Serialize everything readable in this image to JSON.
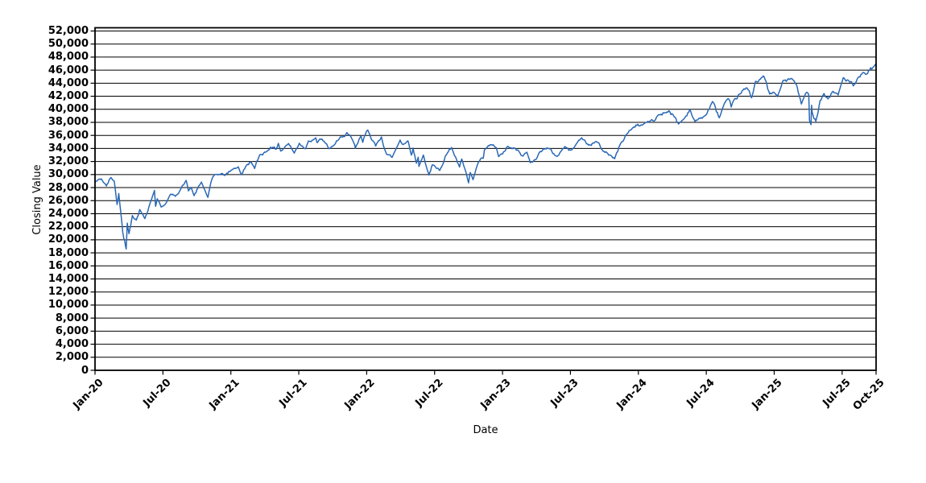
{
  "chart_data": {
    "type": "line",
    "title": "",
    "xlabel": "Date",
    "ylabel": "Closing Value",
    "grid": "horizontal",
    "legend": "none",
    "line_color": "#2a68b5",
    "grid_color": "#000000",
    "axis_color": "#000000",
    "background_color": "#ffffff",
    "xlim_months": [
      0,
      69
    ],
    "ylim": [
      0,
      52000
    ],
    "x_unit": "months since Jan-2020",
    "x_ticks": [
      {
        "m": 0,
        "label": "Jan-20"
      },
      {
        "m": 6,
        "label": "Jul-20"
      },
      {
        "m": 12,
        "label": "Jan-21"
      },
      {
        "m": 18,
        "label": "Jul-21"
      },
      {
        "m": 24,
        "label": "Jan-22"
      },
      {
        "m": 30,
        "label": "Jul-22"
      },
      {
        "m": 36,
        "label": "Jan-23"
      },
      {
        "m": 42,
        "label": "Jul-23"
      },
      {
        "m": 48,
        "label": "Jan-24"
      },
      {
        "m": 54,
        "label": "Jul-24"
      },
      {
        "m": 60,
        "label": "Jan-25"
      },
      {
        "m": 66,
        "label": "Jul-25"
      },
      {
        "m": 69,
        "label": "Oct-25"
      }
    ],
    "y_ticks": [
      {
        "v": 0,
        "label": "0"
      },
      {
        "v": 2000,
        "label": "2,000"
      },
      {
        "v": 4000,
        "label": "4,000"
      },
      {
        "v": 6000,
        "label": "6,000"
      },
      {
        "v": 8000,
        "label": "8,000"
      },
      {
        "v": 10000,
        "label": "10,000"
      },
      {
        "v": 12000,
        "label": "12,000"
      },
      {
        "v": 14000,
        "label": "14,000"
      },
      {
        "v": 16000,
        "label": "16,000"
      },
      {
        "v": 18000,
        "label": "18,000"
      },
      {
        "v": 20000,
        "label": "20,000"
      },
      {
        "v": 22000,
        "label": "22,000"
      },
      {
        "v": 24000,
        "label": "24,000"
      },
      {
        "v": 26000,
        "label": "26,000"
      },
      {
        "v": 28000,
        "label": "28,000"
      },
      {
        "v": 30000,
        "label": "30,000"
      },
      {
        "v": 32000,
        "label": "32,000"
      },
      {
        "v": 34000,
        "label": "34,000"
      },
      {
        "v": 36000,
        "label": "36,000"
      },
      {
        "v": 38000,
        "label": "38,000"
      },
      {
        "v": 40000,
        "label": "40,000"
      },
      {
        "v": 42000,
        "label": "42,000"
      },
      {
        "v": 44000,
        "label": "44,000"
      },
      {
        "v": 46000,
        "label": "46,000"
      },
      {
        "v": 48000,
        "label": "48,000"
      },
      {
        "v": 50000,
        "label": "50,000"
      },
      {
        "v": 52000,
        "label": "52,000"
      }
    ],
    "series": [
      {
        "name": "Closing Value",
        "points": [
          [
            0,
            28869
          ],
          [
            0.55,
            29348
          ],
          [
            1.0,
            28256
          ],
          [
            1.4,
            29551
          ],
          [
            1.7,
            28992
          ],
          [
            1.95,
            25409
          ],
          [
            2.1,
            27090
          ],
          [
            2.3,
            23851
          ],
          [
            2.45,
            21200
          ],
          [
            2.55,
            20188
          ],
          [
            2.62,
            19898
          ],
          [
            2.68,
            19173
          ],
          [
            2.75,
            18592
          ],
          [
            2.85,
            22552
          ],
          [
            3.0,
            20943
          ],
          [
            3.3,
            23719
          ],
          [
            3.65,
            23018
          ],
          [
            3.95,
            24634
          ],
          [
            4.4,
            23248
          ],
          [
            4.85,
            25548
          ],
          [
            5.25,
            27572
          ],
          [
            5.35,
            25128
          ],
          [
            5.5,
            26290
          ],
          [
            5.85,
            25016
          ],
          [
            6.3,
            25706
          ],
          [
            6.7,
            27006
          ],
          [
            7.1,
            26664
          ],
          [
            7.9,
            28654
          ],
          [
            8.05,
            29100
          ],
          [
            8.25,
            27501
          ],
          [
            8.5,
            28032
          ],
          [
            8.75,
            26763
          ],
          [
            9.4,
            28838
          ],
          [
            9.97,
            26502
          ],
          [
            10.3,
            29158
          ],
          [
            10.55,
            29950
          ],
          [
            10.8,
            30046
          ],
          [
            11.3,
            30069
          ],
          [
            11.45,
            29861
          ],
          [
            12.0,
            30606
          ],
          [
            12.2,
            30830
          ],
          [
            12.65,
            31188
          ],
          [
            12.95,
            29983
          ],
          [
            13.4,
            31458
          ],
          [
            13.8,
            31962
          ],
          [
            14.1,
            30924
          ],
          [
            14.55,
            33015
          ],
          [
            15.15,
            33527
          ],
          [
            15.5,
            34201
          ],
          [
            16.0,
            33875
          ],
          [
            16.2,
            34778
          ],
          [
            16.4,
            33588
          ],
          [
            16.9,
            34464
          ],
          [
            17.1,
            34756
          ],
          [
            17.6,
            33290
          ],
          [
            18.05,
            34786
          ],
          [
            18.6,
            33962
          ],
          [
            18.85,
            35144
          ],
          [
            19.5,
            35625
          ],
          [
            19.62,
            34894
          ],
          [
            20.05,
            35444
          ],
          [
            20.65,
            33970
          ],
          [
            21.0,
            34326
          ],
          [
            21.5,
            35295
          ],
          [
            21.85,
            35757
          ],
          [
            22.25,
            36432
          ],
          [
            22.85,
            34899
          ],
          [
            23.0,
            34022
          ],
          [
            23.5,
            35898
          ],
          [
            23.65,
            34932
          ],
          [
            23.95,
            36488
          ],
          [
            24.1,
            36800
          ],
          [
            24.8,
            34365
          ],
          [
            25.3,
            35768
          ],
          [
            25.75,
            33132
          ],
          [
            26.25,
            32633
          ],
          [
            26.95,
            35294
          ],
          [
            27.15,
            34641
          ],
          [
            27.65,
            35161
          ],
          [
            27.95,
            32977
          ],
          [
            28.1,
            34061
          ],
          [
            28.4,
            31730
          ],
          [
            28.55,
            32655
          ],
          [
            28.62,
            31253
          ],
          [
            29.0,
            32990
          ],
          [
            29.5,
            29927
          ],
          [
            29.8,
            31501
          ],
          [
            30.15,
            30968
          ],
          [
            30.45,
            30630
          ],
          [
            30.95,
            32845
          ],
          [
            31.5,
            34152
          ],
          [
            32.2,
            31145
          ],
          [
            32.4,
            32381
          ],
          [
            33.0,
            28726
          ],
          [
            33.15,
            30316
          ],
          [
            33.4,
            29211
          ],
          [
            33.85,
            31837
          ],
          [
            34.3,
            32513
          ],
          [
            34.4,
            33748
          ],
          [
            35.0,
            34590
          ],
          [
            35.45,
            34108
          ],
          [
            35.65,
            32758
          ],
          [
            36.0,
            33147
          ],
          [
            36.45,
            34303
          ],
          [
            36.85,
            33949
          ],
          [
            37.05,
            34054
          ],
          [
            37.8,
            32817
          ],
          [
            38.15,
            33431
          ],
          [
            38.45,
            31819
          ],
          [
            38.8,
            32238
          ],
          [
            39.6,
            33977
          ],
          [
            40.0,
            34052
          ],
          [
            40.8,
            32765
          ],
          [
            41.5,
            34299
          ],
          [
            41.85,
            33714
          ],
          [
            42.45,
            34509
          ],
          [
            43.0,
            35630
          ],
          [
            43.6,
            34501
          ],
          [
            44.0,
            34838
          ],
          [
            44.45,
            34907
          ],
          [
            44.9,
            33550
          ],
          [
            45.2,
            33408
          ],
          [
            45.9,
            32418
          ],
          [
            46.45,
            34828
          ],
          [
            47.0,
            36245
          ],
          [
            47.45,
            37090
          ],
          [
            47.95,
            37710
          ],
          [
            48.15,
            37466
          ],
          [
            48.7,
            38002
          ],
          [
            49.0,
            38150
          ],
          [
            49.45,
            38273
          ],
          [
            49.75,
            39132
          ],
          [
            50.7,
            39781
          ],
          [
            51.15,
            38904
          ],
          [
            51.55,
            37753
          ],
          [
            52.1,
            38676
          ],
          [
            52.55,
            40004
          ],
          [
            53.0,
            38111
          ],
          [
            53.45,
            38589
          ],
          [
            54.0,
            39170
          ],
          [
            54.55,
            41198
          ],
          [
            55.15,
            38703
          ],
          [
            55.6,
            40897
          ],
          [
            56.0,
            41563
          ],
          [
            56.2,
            40345
          ],
          [
            56.9,
            42313
          ],
          [
            57.6,
            43275
          ],
          [
            58.0,
            41763
          ],
          [
            58.35,
            44293
          ],
          [
            58.95,
            44911
          ],
          [
            59.1,
            45014
          ],
          [
            59.6,
            42327
          ],
          [
            60.0,
            42544
          ],
          [
            60.3,
            41938
          ],
          [
            60.8,
            44424
          ],
          [
            61.6,
            44627
          ],
          [
            61.95,
            43841
          ],
          [
            62.4,
            40814
          ],
          [
            62.85,
            42587
          ],
          [
            63.05,
            42225
          ],
          [
            63.12,
            38315
          ],
          [
            63.25,
            37646
          ],
          [
            63.3,
            40608
          ],
          [
            63.35,
            39594
          ],
          [
            63.68,
            38170
          ],
          [
            64.05,
            41317
          ],
          [
            64.4,
            42410
          ],
          [
            64.75,
            41603
          ],
          [
            65.2,
            42763
          ],
          [
            65.65,
            42207
          ],
          [
            66.1,
            44829
          ],
          [
            66.6,
            44342
          ],
          [
            67.0,
            43589
          ],
          [
            67.9,
            45637
          ],
          [
            68.15,
            45401
          ],
          [
            68.7,
            46381
          ],
          [
            69,
            46758
          ]
        ]
      }
    ]
  }
}
